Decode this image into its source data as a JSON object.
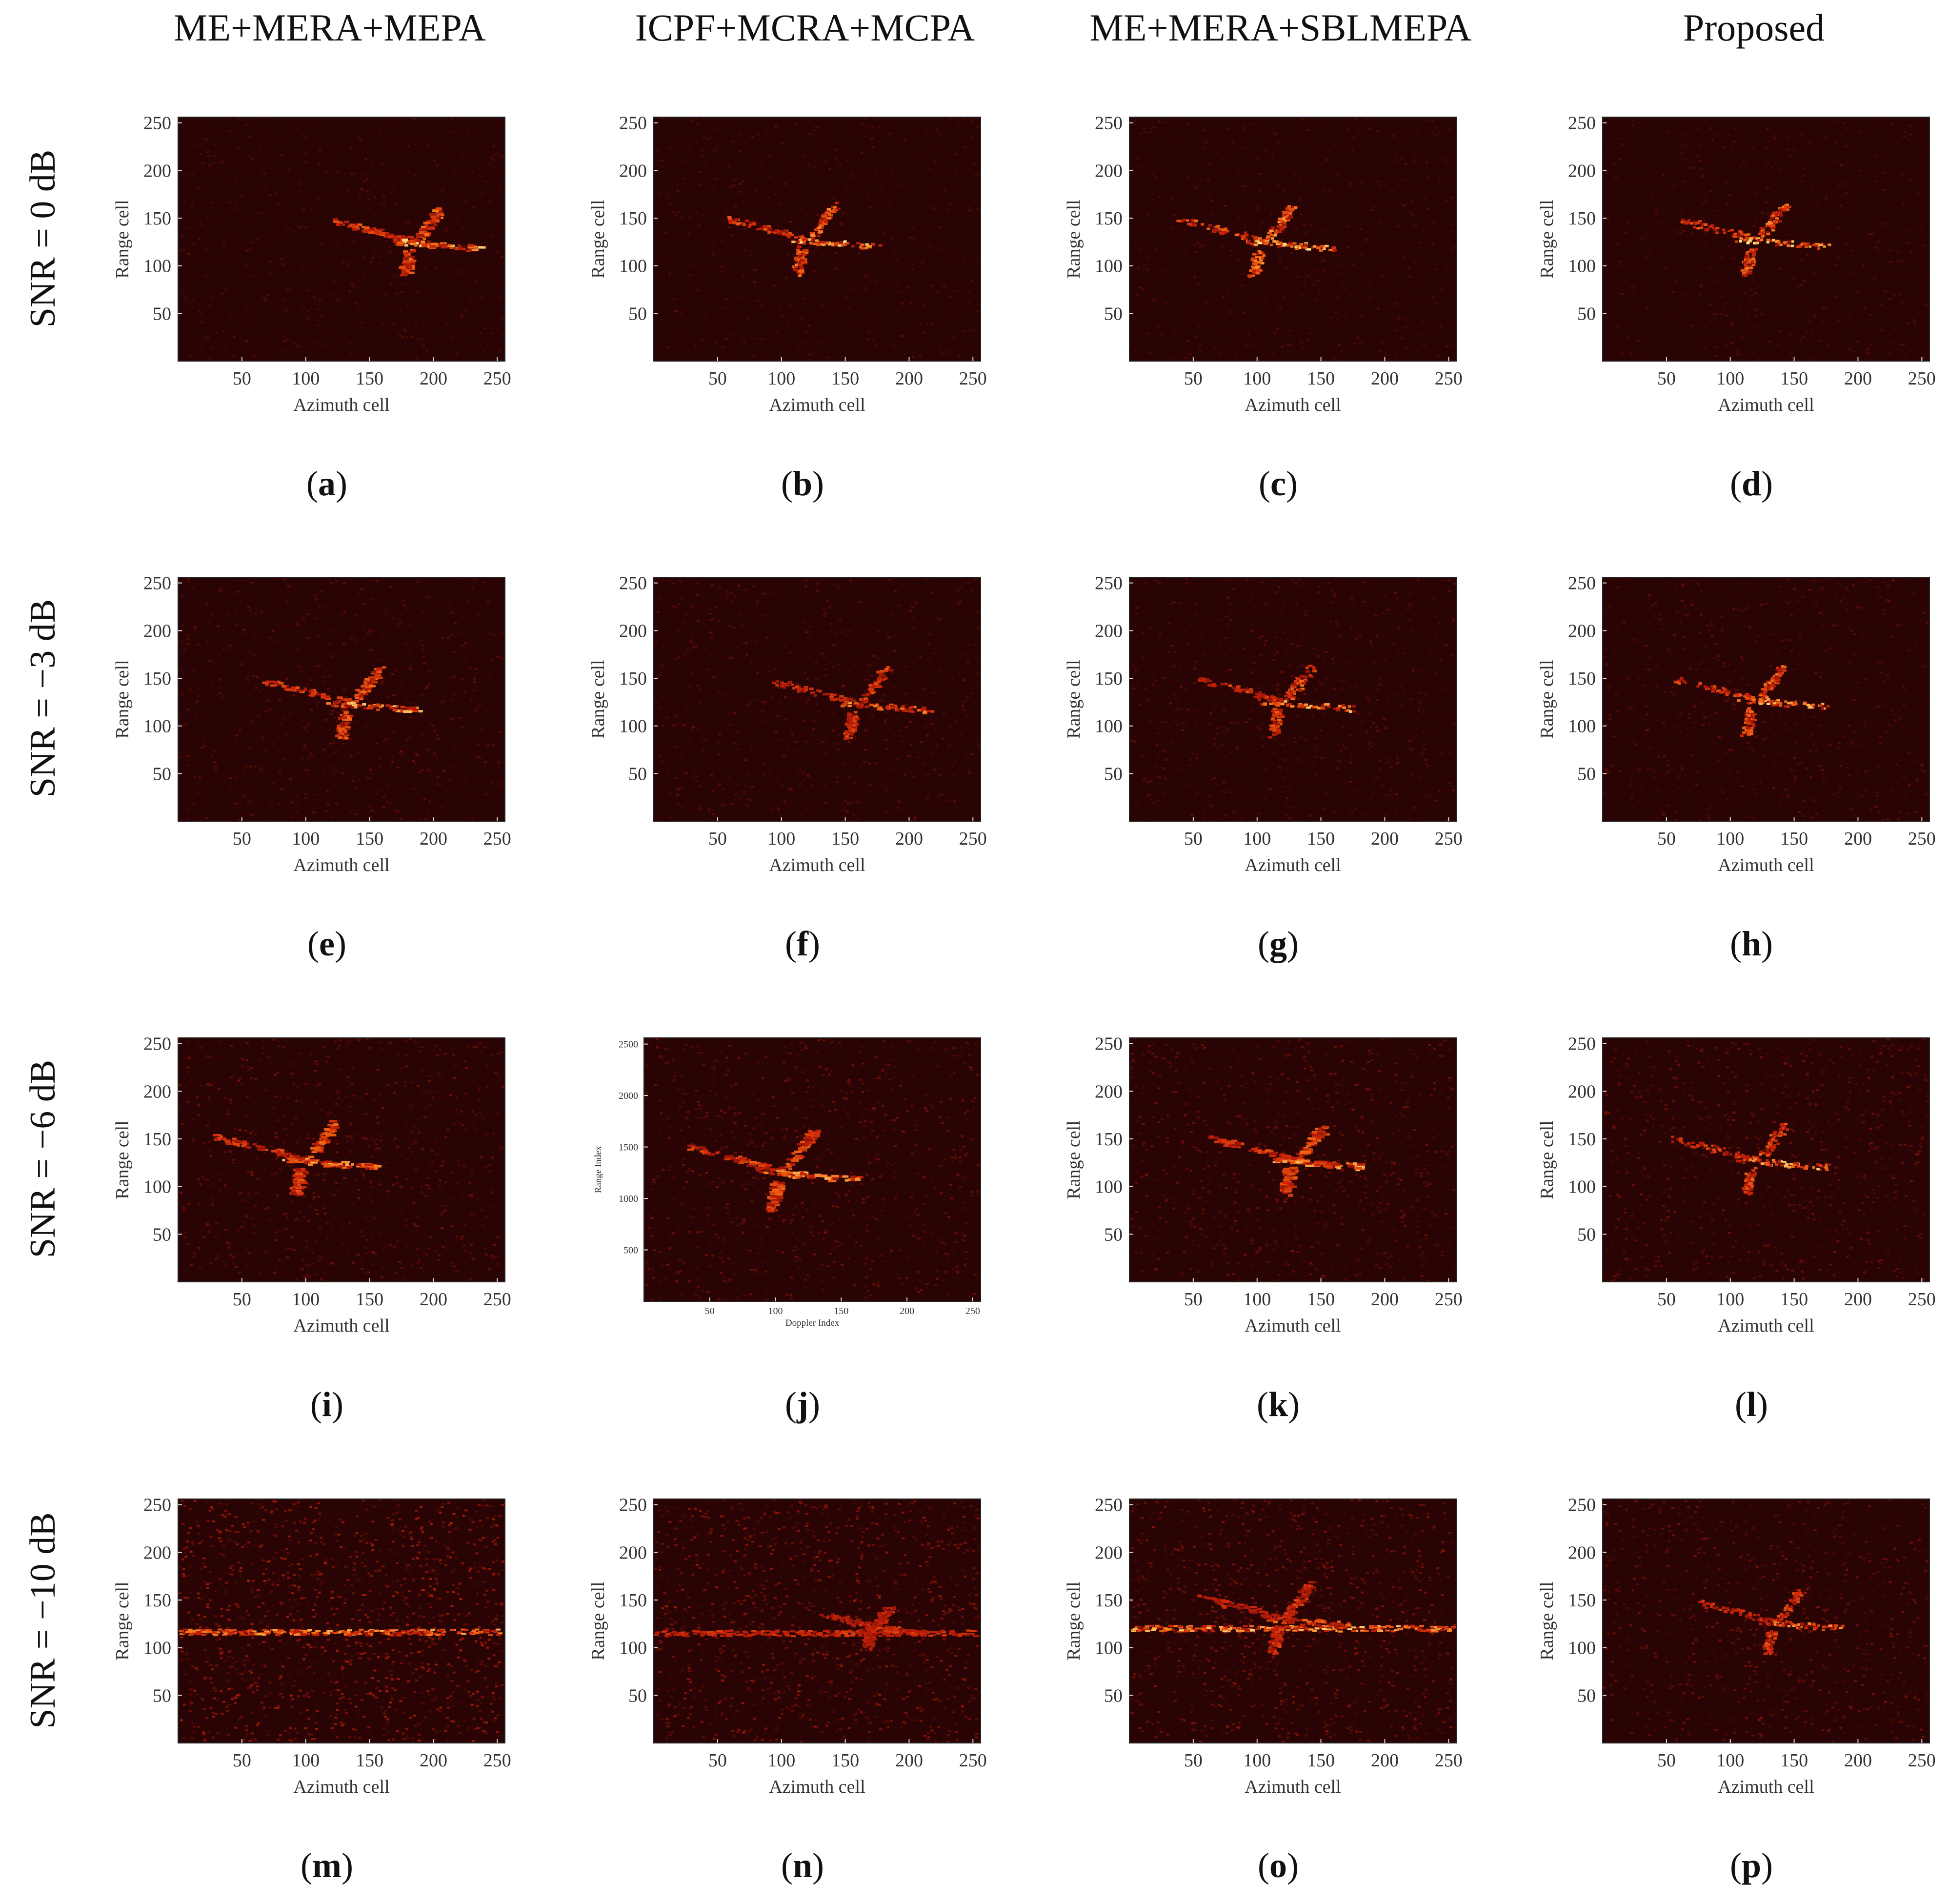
{
  "columns": [
    "ME+MERA+MEPA",
    "ICPF+MCRA+MCPA",
    "ME+MERA+SBLMEPA",
    "Proposed"
  ],
  "rows": [
    "SNR = 0 dB",
    "SNR = −3 dB",
    "SNR = −6 dB",
    "SNR = −10 dB"
  ],
  "colors": {
    "background": "#2a0404",
    "noise": "#7a1208",
    "target_mid": "#e0300a",
    "target_hot": "#ffe070"
  },
  "chart_data": [
    {
      "type": "heatmap",
      "panel": "a",
      "label_text": "a",
      "column": "ME+MERA+MEPA",
      "row": "SNR = 0 dB",
      "xlabel": "Azimuth cell",
      "ylabel": "Range cell",
      "xlim": [
        0,
        256
      ],
      "ylim": [
        0,
        256
      ],
      "xticks": [
        50,
        100,
        150,
        200,
        250
      ],
      "yticks": [
        50,
        100,
        150,
        200,
        250
      ],
      "noise_level": 0.06,
      "target": {
        "center": [
          190,
          120
        ],
        "scale": 0.95,
        "intensity": 0.85,
        "streak": 0.25
      }
    },
    {
      "type": "heatmap",
      "panel": "b",
      "label_text": "b",
      "column": "ICPF+MCRA+MCPA",
      "row": "SNR = 0 dB",
      "xlabel": "Azimuth cell",
      "ylabel": "Range cell",
      "xlim": [
        0,
        256
      ],
      "ylim": [
        0,
        256
      ],
      "xticks": [
        50,
        100,
        150,
        200,
        250
      ],
      "yticks": [
        50,
        100,
        150,
        200,
        250
      ],
      "noise_level": 0.05,
      "target": {
        "center": [
          125,
          122
        ],
        "scale": 1.0,
        "intensity": 0.9,
        "streak": 0.1
      }
    },
    {
      "type": "heatmap",
      "panel": "c",
      "label_text": "c",
      "column": "ME+MERA+SBLMEPA",
      "row": "SNR = 0 dB",
      "xlabel": "Azimuth cell",
      "ylabel": "Range cell",
      "xlim": [
        0,
        256
      ],
      "ylim": [
        0,
        256
      ],
      "xticks": [
        50,
        100,
        150,
        200,
        250
      ],
      "yticks": [
        50,
        100,
        150,
        200,
        250
      ],
      "noise_level": 0.05,
      "target": {
        "center": [
          110,
          120
        ],
        "scale": 1.0,
        "intensity": 1.0,
        "streak": 0.1
      }
    },
    {
      "type": "heatmap",
      "panel": "d",
      "label_text": "d",
      "column": "Proposed",
      "row": "SNR = 0 dB",
      "xlabel": "Azimuth cell",
      "ylabel": "Range cell",
      "xlim": [
        0,
        256
      ],
      "ylim": [
        0,
        256
      ],
      "xticks": [
        50,
        100,
        150,
        200,
        250
      ],
      "yticks": [
        50,
        100,
        150,
        200,
        250
      ],
      "noise_level": 0.05,
      "target": {
        "center": [
          125,
          122
        ],
        "scale": 1.0,
        "intensity": 0.9,
        "streak": 0.05
      }
    },
    {
      "type": "heatmap",
      "panel": "e",
      "label_text": "e",
      "column": "ME+MERA+MEPA",
      "row": "SNR = −3 dB",
      "xlabel": "Azimuth cell",
      "ylabel": "Range cell",
      "xlim": [
        0,
        256
      ],
      "ylim": [
        0,
        256
      ],
      "xticks": [
        50,
        100,
        150,
        200,
        250
      ],
      "yticks": [
        50,
        100,
        150,
        200,
        250
      ],
      "noise_level": 0.12,
      "target": {
        "center": [
          140,
          118
        ],
        "scale": 1.0,
        "intensity": 0.8,
        "streak": 0.2
      }
    },
    {
      "type": "heatmap",
      "panel": "f",
      "label_text": "f",
      "column": "ICPF+MCRA+MCPA",
      "row": "SNR = −3 dB",
      "xlabel": "Azimuth cell",
      "ylabel": "Range cell",
      "xlim": [
        0,
        256
      ],
      "ylim": [
        0,
        256
      ],
      "xticks": [
        50,
        100,
        150,
        200,
        250
      ],
      "yticks": [
        50,
        100,
        150,
        200,
        250
      ],
      "noise_level": 0.12,
      "target": {
        "center": [
          165,
          118
        ],
        "scale": 1.0,
        "intensity": 0.65,
        "streak": 0.1
      }
    },
    {
      "type": "heatmap",
      "panel": "g",
      "label_text": "g",
      "column": "ME+MERA+SBLMEPA",
      "row": "SNR = −3 dB",
      "xlabel": "Azimuth cell",
      "ylabel": "Range cell",
      "xlim": [
        0,
        256
      ],
      "ylim": [
        0,
        256
      ],
      "xticks": [
        50,
        100,
        150,
        200,
        250
      ],
      "yticks": [
        50,
        100,
        150,
        200,
        250
      ],
      "noise_level": 0.12,
      "target": {
        "center": [
          125,
          120
        ],
        "scale": 1.0,
        "intensity": 0.8,
        "streak": 0.1
      }
    },
    {
      "type": "heatmap",
      "panel": "h",
      "label_text": "h",
      "column": "Proposed",
      "row": "SNR = −3 dB",
      "xlabel": "Azimuth cell",
      "ylabel": "Range cell",
      "xlim": [
        0,
        256
      ],
      "ylim": [
        0,
        256
      ],
      "xticks": [
        50,
        100,
        150,
        200,
        250
      ],
      "yticks": [
        50,
        100,
        150,
        200,
        250
      ],
      "noise_level": 0.12,
      "target": {
        "center": [
          125,
          122
        ],
        "scale": 1.0,
        "intensity": 0.85,
        "streak": 0.05
      }
    },
    {
      "type": "heatmap",
      "panel": "i",
      "label_text": "i",
      "column": "ME+MERA+MEPA",
      "row": "SNR = −6 dB",
      "xlabel": "Azimuth cell",
      "ylabel": "Range cell",
      "xlim": [
        0,
        256
      ],
      "ylim": [
        0,
        256
      ],
      "xticks": [
        50,
        100,
        150,
        200,
        250
      ],
      "yticks": [
        50,
        100,
        150,
        200,
        250
      ],
      "noise_level": 0.2,
      "target": {
        "center": [
          105,
          122
        ],
        "scale": 1.05,
        "intensity": 0.75,
        "streak": 0.3
      }
    },
    {
      "type": "heatmap",
      "panel": "j",
      "label_text": "j",
      "column": "ICPF+MCRA+MCPA",
      "row": "SNR = −6 dB",
      "xlabel": "Doppler Index",
      "ylabel": "Range Index",
      "xlim": [
        0,
        256
      ],
      "ylim": [
        0,
        2560
      ],
      "xticks": [
        50,
        100,
        150,
        200,
        250
      ],
      "yticks": [
        500,
        1000,
        1500,
        2000,
        2500
      ],
      "noise_level": 0.22,
      "small_text": true,
      "target": {
        "center": [
          110,
          1200
        ],
        "scale": 1.05,
        "intensity": 0.8,
        "streak": 0.3
      }
    },
    {
      "type": "heatmap",
      "panel": "k",
      "label_text": "k",
      "column": "ME+MERA+SBLMEPA",
      "row": "SNR = −6 dB",
      "xlabel": "Azimuth cell",
      "ylabel": "Range cell",
      "xlim": [
        0,
        256
      ],
      "ylim": [
        0,
        256
      ],
      "xticks": [
        50,
        100,
        150,
        200,
        250
      ],
      "yticks": [
        50,
        100,
        150,
        200,
        250
      ],
      "noise_level": 0.2,
      "target": {
        "center": [
          135,
          122
        ],
        "scale": 1.0,
        "intensity": 0.75,
        "streak": 0.35
      }
    },
    {
      "type": "heatmap",
      "panel": "l",
      "label_text": "l",
      "column": "Proposed",
      "row": "SNR = −6 dB",
      "xlabel": "Azimuth cell",
      "ylabel": "Range cell",
      "xlim": [
        0,
        256
      ],
      "ylim": [
        0,
        256
      ],
      "xticks": [
        50,
        100,
        150,
        200,
        250
      ],
      "yticks": [
        50,
        100,
        150,
        200,
        250
      ],
      "noise_level": 0.2,
      "target": {
        "center": [
          125,
          122
        ],
        "scale": 1.0,
        "intensity": 0.8,
        "streak": 0.05
      }
    },
    {
      "type": "heatmap",
      "panel": "m",
      "label_text": "m",
      "column": "ME+MERA+MEPA",
      "row": "SNR = −10 dB",
      "xlabel": "Azimuth cell",
      "ylabel": "Range cell",
      "xlim": [
        0,
        256
      ],
      "ylim": [
        0,
        256
      ],
      "xticks": [
        50,
        100,
        150,
        200,
        250
      ],
      "yticks": [
        50,
        100,
        150,
        200,
        250
      ],
      "noise_level": 0.45,
      "band": {
        "y": 117,
        "intensity": 0.75
      },
      "target": null
    },
    {
      "type": "heatmap",
      "panel": "n",
      "label_text": "n",
      "column": "ICPF+MCRA+MCPA",
      "row": "SNR = −10 dB",
      "xlabel": "Azimuth cell",
      "ylabel": "Range cell",
      "xlim": [
        0,
        256
      ],
      "ylim": [
        0,
        256
      ],
      "xticks": [
        50,
        100,
        150,
        200,
        250
      ],
      "yticks": [
        50,
        100,
        150,
        200,
        250
      ],
      "noise_level": 0.35,
      "band": {
        "y": 116,
        "intensity": 0.35
      },
      "target": {
        "center": [
          175,
          118
        ],
        "scale": 0.6,
        "intensity": 0.4,
        "streak": 0.1
      }
    },
    {
      "type": "heatmap",
      "panel": "o",
      "label_text": "o",
      "column": "ME+MERA+SBLMEPA",
      "row": "SNR = −10 dB",
      "xlabel": "Azimuth cell",
      "ylabel": "Range cell",
      "xlim": [
        0,
        256
      ],
      "ylim": [
        0,
        256
      ],
      "xticks": [
        50,
        100,
        150,
        200,
        250
      ],
      "yticks": [
        50,
        100,
        150,
        200,
        250
      ],
      "noise_level": 0.3,
      "band": {
        "y": 121,
        "intensity": 0.85
      },
      "target": {
        "center": [
          125,
          125
        ],
        "scale": 1.0,
        "intensity": 0.55,
        "streak": 0.2
      }
    },
    {
      "type": "heatmap",
      "panel": "p",
      "label_text": "p",
      "column": "Proposed",
      "row": "SNR = −10 dB",
      "xlabel": "Azimuth cell",
      "ylabel": "Range cell",
      "xlim": [
        0,
        256
      ],
      "ylim": [
        0,
        256
      ],
      "xticks": [
        50,
        100,
        150,
        200,
        250
      ],
      "yticks": [
        50,
        100,
        150,
        200,
        250
      ],
      "noise_level": 0.22,
      "target": {
        "center": [
          140,
          122
        ],
        "scale": 0.9,
        "intensity": 0.65,
        "streak": 0.05
      }
    }
  ]
}
